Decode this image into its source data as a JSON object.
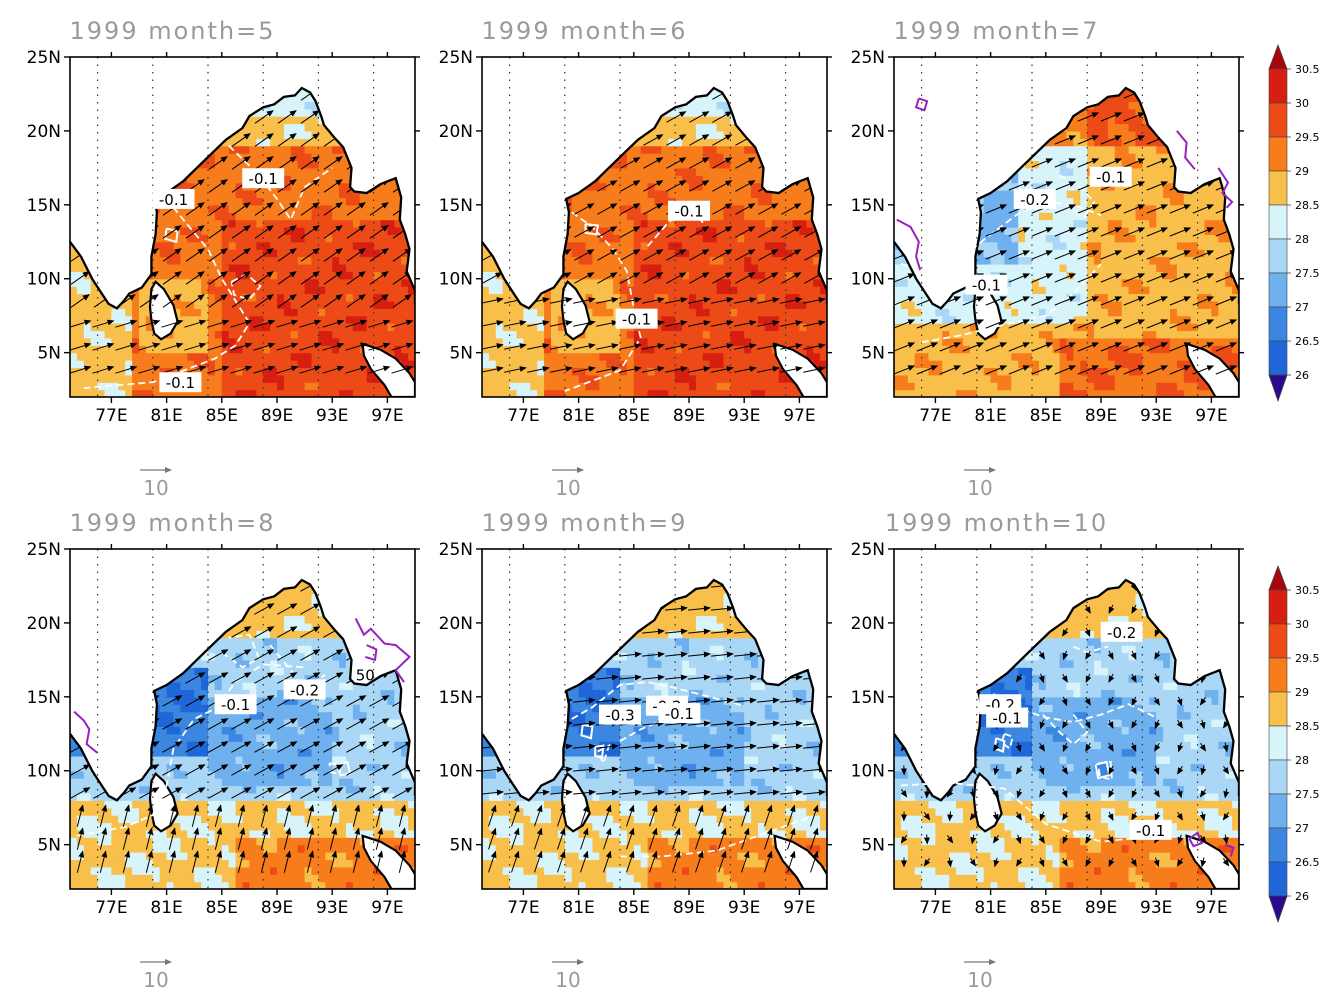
{
  "colorbar": {
    "levels": [
      "26",
      "26.5",
      "27",
      "27.5",
      "28",
      "28.5",
      "29",
      "29.5",
      "30",
      "30.5"
    ],
    "colors": [
      "#2a0a8c",
      "#1f66d8",
      "#3a86e0",
      "#6fb0ee",
      "#a9d7f5",
      "#d7f4fb",
      "#f9bf4b",
      "#f77c1c",
      "#ec4a16",
      "#d61f10",
      "#a8060a"
    ]
  },
  "vector_reference_value": "10",
  "lat_ticks": [
    "25N",
    "20N",
    "15N",
    "10N",
    "5N"
  ],
  "lon_ticks": [
    "77E",
    "81E",
    "85E",
    "89E",
    "93E",
    "97E"
  ],
  "panels": [
    {
      "title": "1999  month=5",
      "shading": "warm",
      "contour_labels": [
        "-0.1",
        "-0.1",
        "-0.1"
      ]
    },
    {
      "title": "1999  month=6",
      "shading": "warm",
      "contour_labels": [
        "-0.1",
        "-0.1"
      ]
    },
    {
      "title": "1999  month=7",
      "shading": "mixed",
      "contour_labels": [
        "-0.1",
        "-0.2",
        "-0.1"
      ]
    },
    {
      "title": "1999  month=8",
      "shading": "cool",
      "contour_labels": [
        "-0.1",
        "-0.2",
        "50"
      ]
    },
    {
      "title": "1999  month=9",
      "shading": "cool",
      "contour_labels": [
        "-0.2",
        "-0.3",
        "-0.1"
      ]
    },
    {
      "title": "1999  month=10",
      "shading": "cool",
      "contour_labels": [
        "-0.2",
        "-0.2",
        "-0.1",
        "-0.1"
      ]
    }
  ]
}
